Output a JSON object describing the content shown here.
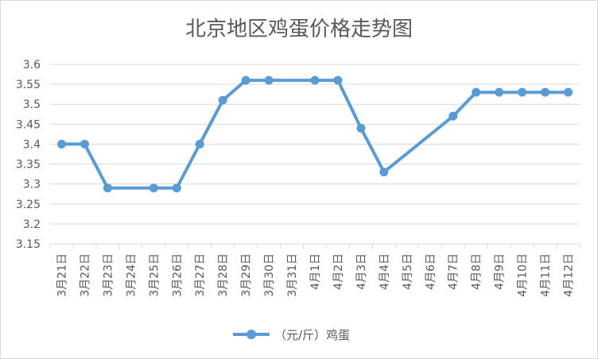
{
  "chart_data": {
    "type": "line",
    "title": "北京地区鸡蛋价格走势图",
    "xlabel": "",
    "ylabel": "",
    "categories": [
      "3月21日",
      "3月22日",
      "3月23日",
      "3月24日",
      "3月25日",
      "3月26日",
      "3月27日",
      "3月28日",
      "3月29日",
      "3月30日",
      "3月31日",
      "4月1日",
      "4月2日",
      "4月3日",
      "4月4日",
      "4月5日",
      "4月6日",
      "4月7日",
      "4月8日",
      "4月9日",
      "4月10日",
      "4月11日",
      "4月12日"
    ],
    "series": [
      {
        "name": "（元/斤）鸡蛋",
        "color": "#5b9bd5",
        "values": [
          3.4,
          3.4,
          3.29,
          null,
          3.29,
          3.29,
          3.4,
          3.51,
          3.56,
          3.56,
          null,
          3.56,
          3.56,
          3.44,
          3.33,
          null,
          null,
          3.47,
          3.53,
          3.53,
          3.53,
          3.53,
          3.53
        ]
      }
    ],
    "ylim": [
      3.15,
      3.6
    ],
    "yticks": [
      "3.6",
      "3.55",
      "3.5",
      "3.45",
      "3.4",
      "3.35",
      "3.3",
      "3.25",
      "3.2",
      "3.15"
    ],
    "grid": true,
    "legend": "bottom"
  }
}
